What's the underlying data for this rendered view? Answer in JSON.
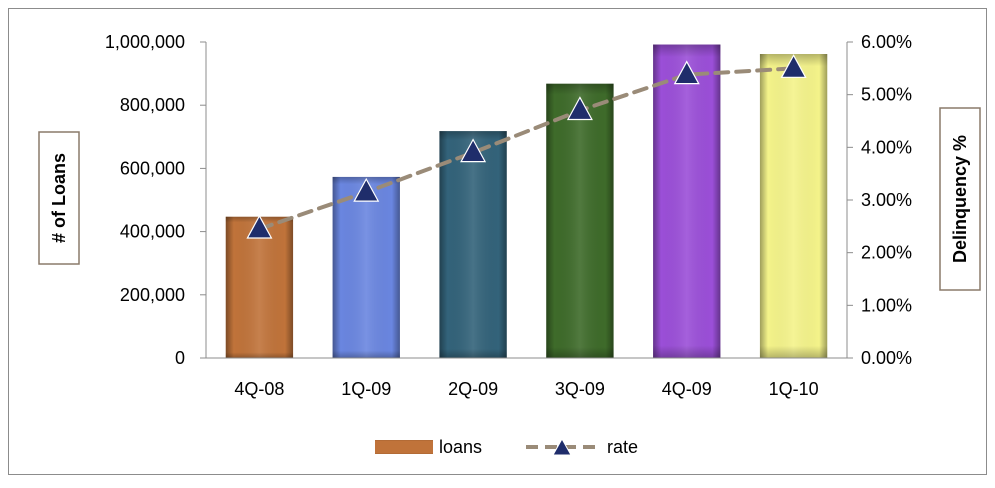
{
  "chart_data": {
    "type": "bar",
    "categories": [
      "4Q-08",
      "1Q-09",
      "2Q-09",
      "3Q-09",
      "4Q-09",
      "1Q-10"
    ],
    "series": [
      {
        "name": "loans",
        "kind": "bar",
        "axis": "left",
        "values": [
          447000,
          573000,
          718000,
          868000,
          992000,
          962000
        ]
      },
      {
        "name": "rate",
        "kind": "line",
        "axis": "right",
        "line_style": "dashed",
        "marker": "triangle",
        "values": [
          2.45,
          3.15,
          3.9,
          4.7,
          5.38,
          5.5
        ]
      }
    ],
    "bar_colors": [
      "#C0733A",
      "#6A86E0",
      "#33637A",
      "#3E6B2A",
      "#9B4FD8",
      "#F4F38A"
    ],
    "line_color": "#9A8B78",
    "marker_color": "#1F2D6B",
    "ylabel": "# of Loans",
    "y2label": "Delinquency %",
    "ylim": [
      0,
      1000000
    ],
    "y2lim": [
      0,
      6
    ],
    "yticks": [
      "0",
      "200,000",
      "400,000",
      "600,000",
      "800,000",
      "1,000,000"
    ],
    "y2ticks": [
      "0.00%",
      "1.00%",
      "2.00%",
      "3.00%",
      "4.00%",
      "5.00%",
      "6.00%"
    ],
    "legend": {
      "position": "bottom",
      "items": [
        "loans",
        "rate"
      ]
    },
    "grid": false
  }
}
